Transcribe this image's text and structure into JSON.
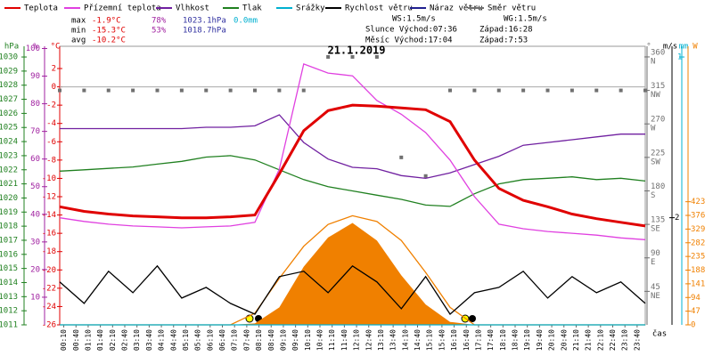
{
  "chart_data": {
    "type": "line",
    "title": "21.1.2019",
    "legend": [
      {
        "name": "Teplota",
        "color": "#e00000"
      },
      {
        "name": "Přízemní teplota",
        "color": "#e040e0"
      },
      {
        "name": "Vlhkost",
        "color": "#7020a0"
      },
      {
        "name": "Tlak",
        "color": "#208020"
      },
      {
        "name": "Srážky",
        "color": "#00b0d0"
      },
      {
        "name": "Rychlost větru",
        "color": "#000000"
      },
      {
        "name": "Náraz větru",
        "color": "#202090"
      },
      {
        "name": "Směr větru",
        "color": "#707070"
      }
    ],
    "stats": [
      {
        "label": "max",
        "temp": "-1.9°C",
        "hum": "78%",
        "press": "1023.1hPa",
        "rain": "0.0mm"
      },
      {
        "label": "min",
        "temp": "-15.3°C",
        "hum": "53%",
        "press": "1018.7hPa"
      },
      {
        "label": "avg",
        "temp": "-10.2°C"
      }
    ],
    "info": [
      "WS:1.5m/s",
      "WG:1.5m/s",
      "Slunce Východ:07:36",
      "Západ:16:28",
      "Měsíc Východ:17:04",
      "Západ:7:53"
    ],
    "units": {
      "p": "hPa",
      "h": "%",
      "t": "°C",
      "d": "°",
      "s": "m/s",
      "r": "mm",
      "w": "W",
      "x": "čas"
    },
    "xlim": [
      0,
      24
    ],
    "xticks": [
      {
        "value": 0.1667,
        "label": "00:10"
      },
      {
        "value": 0.6667,
        "label": "00:40"
      },
      {
        "value": 1.1667,
        "label": "01:10"
      },
      {
        "value": 1.6667,
        "label": "01:40"
      },
      {
        "value": 2.1667,
        "label": "02:10"
      },
      {
        "value": 2.6667,
        "label": "02:40"
      },
      {
        "value": 3.1667,
        "label": "03:10"
      },
      {
        "value": 3.6667,
        "label": "03:40"
      },
      {
        "value": 4.1667,
        "label": "04:10"
      },
      {
        "value": 4.6667,
        "label": "04:40"
      },
      {
        "value": 5.1667,
        "label": "05:10"
      },
      {
        "value": 5.6667,
        "label": "05:40"
      },
      {
        "value": 6.1667,
        "label": "06:10"
      },
      {
        "value": 6.6667,
        "label": "06:40"
      },
      {
        "value": 7.1667,
        "label": "07:10"
      },
      {
        "value": 7.6667,
        "label": "07:40"
      },
      {
        "value": 8.1667,
        "label": "08:10"
      },
      {
        "value": 8.6667,
        "label": "08:40"
      },
      {
        "value": 9.1667,
        "label": "09:10"
      },
      {
        "value": 9.6667,
        "label": "09:40"
      },
      {
        "value": 10.1667,
        "label": "10:10"
      },
      {
        "value": 10.6667,
        "label": "10:40"
      },
      {
        "value": 11.1667,
        "label": "11:10"
      },
      {
        "value": 11.6667,
        "label": "11:40"
      },
      {
        "value": 12.1667,
        "label": "12:10"
      },
      {
        "value": 12.6667,
        "label": "12:40"
      },
      {
        "value": 13.1667,
        "label": "13:10"
      },
      {
        "value": 13.6667,
        "label": "13:40"
      },
      {
        "value": 14.1667,
        "label": "14:10"
      },
      {
        "value": 14.6667,
        "label": "14:40"
      },
      {
        "value": 15.1667,
        "label": "15:10"
      },
      {
        "value": 15.6667,
        "label": "15:40"
      },
      {
        "value": 16.1667,
        "label": "16:10"
      },
      {
        "value": 16.6667,
        "label": "16:40"
      },
      {
        "value": 17.1667,
        "label": "17:10"
      },
      {
        "value": 17.6667,
        "label": "17:40"
      },
      {
        "value": 18.1667,
        "label": "18:10"
      },
      {
        "value": 18.6667,
        "label": "18:40"
      },
      {
        "value": 19.1667,
        "label": "19:10"
      },
      {
        "value": 19.6667,
        "label": "19:40"
      },
      {
        "value": 20.1667,
        "label": "20:10"
      },
      {
        "value": 20.6667,
        "label": "20:40"
      },
      {
        "value": 21.1667,
        "label": "21:10"
      },
      {
        "value": 21.6667,
        "label": "21:40"
      },
      {
        "value": 22.1667,
        "label": "22:10"
      },
      {
        "value": 22.6667,
        "label": "22:40"
      },
      {
        "value": 23.1667,
        "label": "23:10"
      },
      {
        "value": 23.6667,
        "label": "23:40"
      }
    ],
    "axes": {
      "p": {
        "lim": [
          1011,
          1030.76
        ],
        "ticks": [
          1011,
          1012,
          1013,
          1014,
          1015,
          1016,
          1017,
          1018,
          1019,
          1020,
          1021,
          1022,
          1023,
          1024,
          1025,
          1026,
          1027,
          1028,
          1029,
          1030
        ],
        "color": "#208020"
      },
      "h": {
        "lim": [
          0,
          100.8
        ],
        "ticks": [
          10,
          20,
          30,
          40,
          50,
          60,
          70,
          80,
          90,
          100
        ],
        "color": "#a020a0"
      },
      "t": {
        "lim": [
          -26,
          4.43
        ],
        "ticks": [
          -26,
          -24,
          -22,
          -20,
          -18,
          -16,
          -14,
          -12,
          -10,
          -8,
          -6,
          -4,
          -2,
          0,
          2
        ],
        "color": "#e00000"
      },
      "d": {
        "lim": [
          0,
          374.3
        ],
        "ticks": [
          45,
          90,
          135,
          180,
          225,
          270,
          315,
          360
        ],
        "tick_names": [
          "NE",
          "E",
          "SE",
          "S",
          "SW",
          "W",
          "NW",
          "N"
        ],
        "color": "#707070"
      },
      "s": {
        "lim": [
          0,
          5.2
        ],
        "ticks": [
          2
        ],
        "color": "#000000"
      },
      "r": {
        "lim": [
          0,
          1.04
        ],
        "ticks": [
          1
        ],
        "color": "#00b0d0"
      },
      "w": {
        "lim": [
          0,
          957
        ],
        "ticks": [
          0,
          47,
          94,
          141,
          188,
          235,
          282,
          329,
          376,
          423
        ],
        "color": "#f08000"
      }
    },
    "x": [
      0,
      1,
      2,
      3,
      4,
      5,
      6,
      7,
      8,
      9,
      10,
      11,
      12,
      13,
      14,
      15,
      16,
      17,
      18,
      19,
      20,
      21,
      22,
      23,
      24
    ],
    "series": [
      {
        "legend": 7,
        "axis": "d",
        "style": "dots",
        "color": "#707070",
        "values": [
          315,
          315,
          315,
          315,
          315,
          315,
          315,
          315,
          315,
          315,
          315,
          360,
          360,
          360,
          225,
          200,
          315,
          315,
          315,
          315,
          315,
          315,
          315,
          315,
          315
        ]
      },
      {
        "legend": 4,
        "axis": "w",
        "style": "area",
        "color": "#f08000",
        "values": [
          0,
          0,
          0,
          0,
          0,
          0,
          0,
          0,
          5,
          60,
          200,
          300,
          350,
          290,
          170,
          70,
          10,
          0,
          0,
          0,
          0,
          0,
          0,
          0,
          0
        ]
      },
      {
        "legend": 4,
        "axis": "w",
        "style": "line",
        "color": "#f08000",
        "values": [
          0,
          0,
          0,
          0,
          0,
          0,
          0,
          0,
          40,
          160,
          270,
          345,
          375,
          355,
          290,
          180,
          60,
          0,
          0,
          0,
          0,
          0,
          0,
          0,
          0
        ]
      },
      {
        "legend": 4,
        "axis": "r",
        "style": "line",
        "color": "#00b0d0",
        "values": [
          0,
          0,
          0,
          0,
          0,
          0,
          0,
          0,
          0,
          0,
          0,
          0,
          0,
          0,
          0,
          0,
          0,
          0,
          0,
          0,
          0,
          0,
          0,
          0,
          0
        ]
      },
      {
        "legend": 5,
        "axis": "s",
        "style": "line",
        "color": "#000000",
        "values": [
          0.8,
          0.4,
          1.0,
          0.6,
          1.1,
          0.5,
          0.7,
          0.4,
          0.2,
          0.9,
          1.0,
          0.6,
          1.1,
          0.8,
          0.3,
          0.9,
          0.2,
          0.6,
          0.7,
          1.0,
          0.5,
          0.9,
          0.6,
          0.8,
          0.4
        ]
      },
      {
        "legend": 3,
        "axis": "p",
        "style": "line",
        "color": "#208020",
        "values": [
          1021.9,
          1022.0,
          1022.1,
          1022.2,
          1022.4,
          1022.6,
          1022.9,
          1023.0,
          1022.7,
          1022.0,
          1021.3,
          1020.8,
          1020.5,
          1020.2,
          1019.9,
          1019.5,
          1019.4,
          1020.3,
          1021.0,
          1021.3,
          1021.4,
          1021.5,
          1021.3,
          1021.4,
          1021.2
        ]
      },
      {
        "legend": 2,
        "axis": "h",
        "style": "line",
        "color": "#7020a0",
        "values": [
          71,
          71,
          71,
          71,
          71,
          71,
          71.5,
          71.5,
          72,
          76,
          66,
          60,
          57,
          56.5,
          54,
          53,
          55,
          58,
          61,
          65,
          66,
          67,
          68,
          69,
          69
        ]
      },
      {
        "legend": 1,
        "axis": "t",
        "style": "line",
        "color": "#e040e0",
        "values": [
          -14.3,
          -14.7,
          -15,
          -15.2,
          -15.3,
          -15.4,
          -15.3,
          -15.2,
          -14.8,
          -9,
          2.5,
          1.5,
          1.2,
          -1.5,
          -3,
          -5,
          -8,
          -12,
          -15,
          -15.5,
          -15.8,
          -16,
          -16.2,
          -16.5,
          -16.7
        ]
      },
      {
        "legend": 0,
        "axis": "t",
        "style": "thick",
        "color": "#e00000",
        "values": [
          -13.1,
          -13.6,
          -13.9,
          -14.1,
          -14.2,
          -14.3,
          -14.3,
          -14.2,
          -14.0,
          -9.5,
          -4.8,
          -2.6,
          -2.0,
          -2.1,
          -2.3,
          -2.5,
          -3.8,
          -8.0,
          -11.1,
          -12.4,
          -13.1,
          -13.9,
          -14.4,
          -14.8,
          -15.2
        ]
      }
    ]
  }
}
